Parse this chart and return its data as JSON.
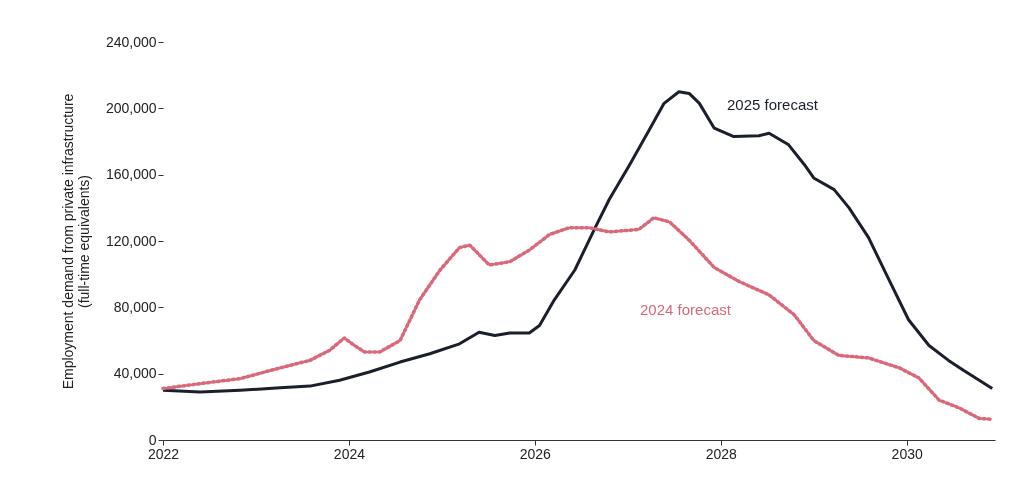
{
  "chart_data": {
    "type": "line",
    "ylabel": "Employment demand from private infrastructure\n(full-time equivalents)",
    "xlim": [
      2022,
      2030.95
    ],
    "xticks": [
      2022,
      2024,
      2026,
      2028,
      2030
    ],
    "ylim": [
      0,
      240000
    ],
    "yticks": [
      0,
      {
        "value": 40000,
        "label": "40,000"
      },
      {
        "value": 80000,
        "label": "80,000"
      },
      {
        "value": 120000,
        "label": "120,000"
      },
      {
        "value": 160000,
        "label": "160,000"
      },
      {
        "value": 200000,
        "label": "200,000"
      },
      {
        "value": 240000,
        "label": "240,000"
      }
    ],
    "grid": false,
    "series": [
      {
        "name": "2025 forecast",
        "color": "#1a1f2b",
        "line_style": "solid",
        "x": [
          2022,
          2022.4,
          2022.83,
          2023.26,
          2023.58,
          2023.9,
          2024.22,
          2024.55,
          2024.87,
          2025.19,
          2025.4,
          2025.57,
          2025.73,
          2025.94,
          2026.05,
          2026.21,
          2026.43,
          2026.64,
          2026.8,
          2027.02,
          2027.23,
          2027.39,
          2027.55,
          2027.66,
          2027.77,
          2027.93,
          2028.14,
          2028.41,
          2028.52,
          2028.73,
          2028.9,
          2029,
          2029.22,
          2029.38,
          2029.59,
          2029.81,
          2030.02,
          2030.24,
          2030.45,
          2030.61,
          2030.78,
          2030.92
        ],
        "values": [
          30000,
          29000,
          30000,
          31500,
          32500,
          36000,
          41000,
          47000,
          52000,
          58000,
          65000,
          63000,
          64500,
          64500,
          69000,
          84500,
          102500,
          127000,
          145000,
          166000,
          187000,
          203000,
          210000,
          209000,
          203000,
          188000,
          183000,
          183500,
          185000,
          178000,
          166000,
          158000,
          151000,
          140000,
          122000,
          96500,
          72500,
          57000,
          48000,
          42000,
          36000,
          31000
        ]
      },
      {
        "name": "2024 forecast",
        "color": "#d9687a",
        "line_style": "dotted",
        "x": [
          2022,
          2022.4,
          2022.83,
          2023.26,
          2023.58,
          2023.79,
          2023.95,
          2024.06,
          2024.17,
          2024.33,
          2024.55,
          2024.76,
          2024.98,
          2025.19,
          2025.3,
          2025.51,
          2025.73,
          2025.94,
          2026.16,
          2026.37,
          2026.59,
          2026.8,
          2027.12,
          2027.28,
          2027.45,
          2027.66,
          2027.93,
          2028.2,
          2028.52,
          2028.79,
          2029,
          2029.27,
          2029.59,
          2029.92,
          2030.13,
          2030.35,
          2030.56,
          2030.78,
          2030.92
        ],
        "values": [
          31000,
          34000,
          37000,
          43500,
          48000,
          54000,
          61500,
          57000,
          53000,
          53000,
          60000,
          84500,
          102500,
          116000,
          117500,
          105500,
          107500,
          114500,
          124000,
          128000,
          128000,
          125500,
          127000,
          134000,
          131500,
          120500,
          104000,
          95500,
          87500,
          75500,
          60000,
          51000,
          49500,
          43500,
          37500,
          24000,
          19500,
          13000,
          12500
        ]
      }
    ]
  }
}
